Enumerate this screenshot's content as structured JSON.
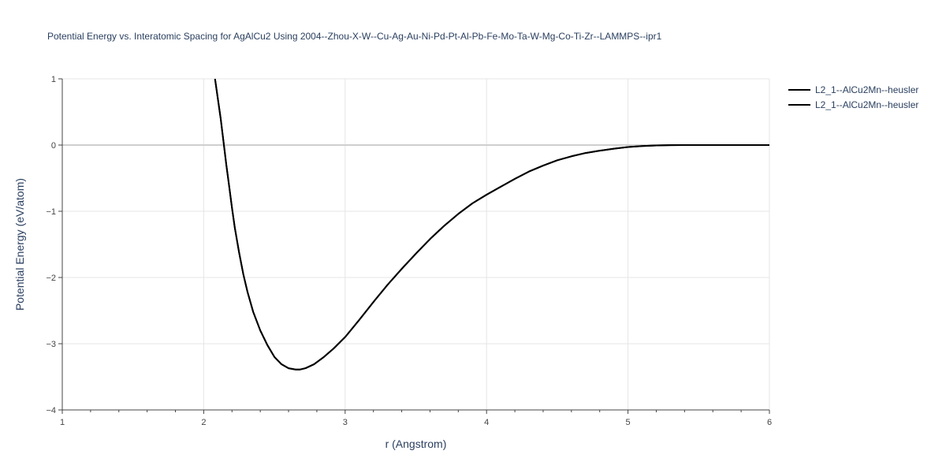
{
  "chart_data": {
    "type": "line",
    "title": "Potential Energy vs. Interatomic Spacing for AgAlCu2 Using 2004--Zhou-X-W--Cu-Ag-Au-Ni-Pd-Pt-Al-Pb-Fe-Mo-Ta-W-Mg-Co-Ti-Zr--LAMMPS--ipr1",
    "xlabel": "r (Angstrom)",
    "ylabel": "Potential Energy (eV/atom)",
    "xlim": [
      1,
      6
    ],
    "ylim": [
      -4,
      1
    ],
    "xticks": [
      1,
      2,
      3,
      4,
      5,
      6
    ],
    "yticks": [
      1,
      0,
      -1,
      -2,
      -3,
      -4
    ],
    "ytick_labels": [
      "1",
      "0",
      "−1",
      "−2",
      "−3",
      "−4"
    ],
    "grid": true,
    "legend_position": "top-right",
    "series": [
      {
        "name": "L2_1--AlCu2Mn--heusler",
        "color": "#000000",
        "x": [
          2.08,
          2.1,
          2.12,
          2.14,
          2.16,
          2.18,
          2.2,
          2.22,
          2.25,
          2.28,
          2.31,
          2.35,
          2.4,
          2.45,
          2.5,
          2.55,
          2.6,
          2.65,
          2.68,
          2.72,
          2.78,
          2.85,
          2.92,
          3.0,
          3.1,
          3.2,
          3.3,
          3.4,
          3.5,
          3.6,
          3.7,
          3.8,
          3.9,
          4.0,
          4.1,
          4.2,
          4.3,
          4.4,
          4.5,
          4.6,
          4.7,
          4.8,
          4.9,
          5.0,
          5.1,
          5.2,
          5.3,
          5.4,
          5.6,
          5.8,
          6.0
        ],
        "y": [
          1.0,
          0.7,
          0.4,
          0.05,
          -0.3,
          -0.62,
          -0.95,
          -1.25,
          -1.62,
          -1.95,
          -2.22,
          -2.52,
          -2.8,
          -3.02,
          -3.2,
          -3.31,
          -3.37,
          -3.39,
          -3.39,
          -3.37,
          -3.31,
          -3.2,
          -3.07,
          -2.9,
          -2.64,
          -2.37,
          -2.11,
          -1.87,
          -1.64,
          -1.42,
          -1.22,
          -1.04,
          -0.88,
          -0.75,
          -0.63,
          -0.51,
          -0.4,
          -0.31,
          -0.23,
          -0.17,
          -0.12,
          -0.085,
          -0.055,
          -0.03,
          -0.015,
          -0.006,
          -0.002,
          0.0,
          0.0,
          0.0,
          0.0
        ]
      },
      {
        "name": "L2_1--AlCu2Mn--heusler",
        "color": "#000000",
        "x": [
          2.08,
          2.1,
          2.12,
          2.14,
          2.16,
          2.18,
          2.2,
          2.22,
          2.25,
          2.28,
          2.31,
          2.35,
          2.4,
          2.45,
          2.5,
          2.55,
          2.6,
          2.65,
          2.68,
          2.72,
          2.78,
          2.85,
          2.92,
          3.0,
          3.1,
          3.2,
          3.3,
          3.4,
          3.5,
          3.6,
          3.7,
          3.8,
          3.9,
          4.0,
          4.1,
          4.2,
          4.3,
          4.4,
          4.5,
          4.6,
          4.7,
          4.8,
          4.9,
          5.0,
          5.1,
          5.2,
          5.3,
          5.4,
          5.6,
          5.8,
          6.0
        ],
        "y": [
          1.0,
          0.7,
          0.4,
          0.05,
          -0.3,
          -0.62,
          -0.95,
          -1.25,
          -1.62,
          -1.95,
          -2.22,
          -2.52,
          -2.8,
          -3.02,
          -3.2,
          -3.31,
          -3.37,
          -3.39,
          -3.39,
          -3.37,
          -3.31,
          -3.2,
          -3.07,
          -2.9,
          -2.64,
          -2.37,
          -2.11,
          -1.87,
          -1.64,
          -1.42,
          -1.22,
          -1.04,
          -0.88,
          -0.75,
          -0.63,
          -0.51,
          -0.4,
          -0.31,
          -0.23,
          -0.17,
          -0.12,
          -0.085,
          -0.055,
          -0.03,
          -0.015,
          -0.006,
          -0.002,
          0.0,
          0.0,
          0.0,
          0.0
        ]
      }
    ]
  }
}
